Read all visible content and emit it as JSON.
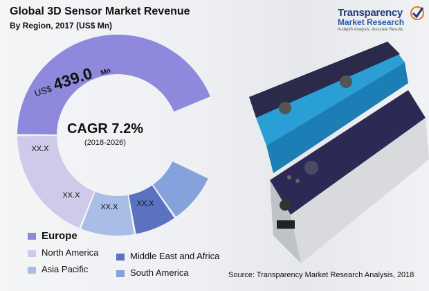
{
  "header": {
    "title": "Global 3D Sensor Market Revenue",
    "subtitle": "By Region, 2017 (US$ Mn)"
  },
  "logo": {
    "name": "Transparency",
    "sub": "Market Research",
    "tag": "In-depth Analysis. Accurate Results"
  },
  "chart_data": {
    "type": "pie",
    "title": "Global 3D Sensor Market Revenue",
    "subtitle": "By Region, 2017 (US$ Mn)",
    "center_label": "CAGR 7.2%",
    "center_sublabel": "(2018-2026)",
    "segments": [
      {
        "name": "Europe",
        "value_label": "439.0",
        "prefix": "US$",
        "suffix": "Mn",
        "color": "#8e89dd"
      },
      {
        "name": "North America",
        "value_label": "XX.X",
        "color": "#cfc9ea"
      },
      {
        "name": "Asia Pacific",
        "value_label": "XX.X",
        "color": "#a9bde6"
      },
      {
        "name": "Middle East and Africa",
        "value_label": "XX.X",
        "color": "#5b72c0"
      },
      {
        "name": "South America",
        "value_label": "XX.X",
        "color": "#86a2dc"
      }
    ],
    "legend_position": "bottom-left"
  },
  "footer": {
    "source": "Source: Transparency Market Research Analysis, 2018"
  }
}
